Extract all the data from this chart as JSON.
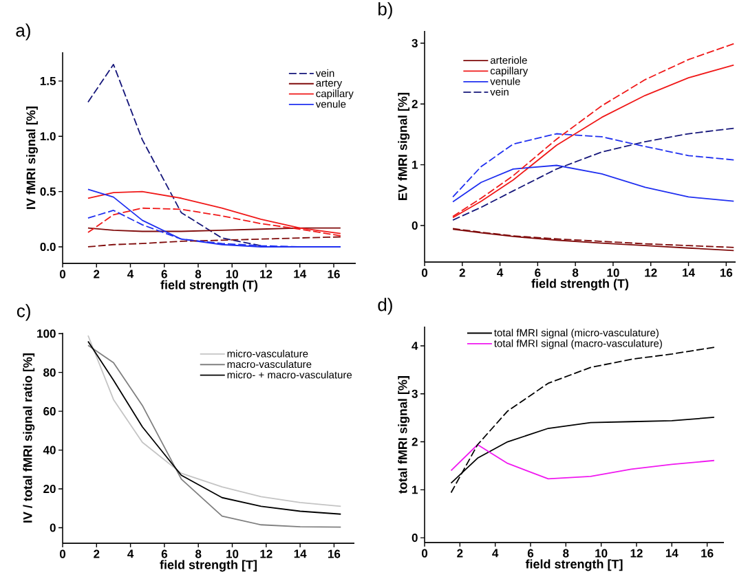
{
  "chart_data": [
    {
      "type": "line",
      "title": "a)",
      "xlabel": "field strength (T)",
      "ylabel": "IV fMRI signal [%]",
      "x": [
        1.5,
        3,
        4.7,
        7,
        9.4,
        11.7,
        14,
        16.4
      ],
      "xlim": [
        0,
        17.3
      ],
      "ylim": [
        -0.15,
        1.76
      ],
      "xticks": [
        0,
        2,
        4,
        6,
        8,
        10,
        12,
        14,
        16
      ],
      "yticks": [
        {
          "value": 0,
          "label": "0.0"
        },
        {
          "value": 0.5,
          "label": "0.5"
        },
        {
          "value": 1,
          "label": "1.0"
        },
        {
          "value": 1.5,
          "label": "1.5"
        }
      ],
      "legend": "top right",
      "series": [
        {
          "name": "vein",
          "color": "#15167a",
          "line_style": "dashed",
          "values": [
            1.31,
            1.65,
            0.97,
            0.31,
            0.08,
            0.01,
            null,
            null
          ]
        },
        {
          "name": "artery",
          "color": "#7f0a0a",
          "line_style": "solid",
          "values": [
            0.17,
            0.15,
            0.14,
            0.14,
            0.15,
            0.16,
            0.17,
            0.17
          ]
        },
        {
          "name": "capillary",
          "color": "#f01818",
          "line_style": "solid",
          "values": [
            0.44,
            0.49,
            0.5,
            0.44,
            0.35,
            0.25,
            0.17,
            0.12
          ]
        },
        {
          "name": "venule",
          "color": "#1f2ff0",
          "line_style": "solid",
          "values": [
            0.52,
            0.45,
            0.24,
            0.07,
            0.02,
            0.0,
            0.0,
            0.0
          ]
        },
        {
          "color": "#7f0a0a",
          "line_style": "dashed",
          "values": [
            0.0,
            0.02,
            0.03,
            0.05,
            0.06,
            0.07,
            0.08,
            0.09
          ]
        },
        {
          "color": "#f01818",
          "line_style": "dashed",
          "values": [
            0.13,
            0.29,
            0.35,
            0.34,
            0.28,
            0.21,
            0.16,
            0.1
          ]
        },
        {
          "color": "#1f2ff0",
          "line_style": "dashed",
          "values": [
            0.26,
            0.33,
            0.2,
            0.07,
            0.03,
            0.01,
            0.0,
            0.0
          ]
        }
      ]
    },
    {
      "type": "line",
      "title": "b)",
      "xlabel": "field strength (T)",
      "ylabel": "EV fMRI signal [%]",
      "x": [
        1.5,
        3,
        4.7,
        7,
        9.4,
        11.7,
        14,
        16.4
      ],
      "xlim": [
        0,
        16.5
      ],
      "ylim": [
        -0.6,
        3.2
      ],
      "xticks": [
        0,
        2,
        4,
        6,
        8,
        10,
        12,
        14,
        16
      ],
      "yticks": [
        0,
        1,
        2,
        3
      ],
      "legend": "top left",
      "series": [
        {
          "name": "arteriole",
          "color": "#7f0a0a",
          "line_style": "solid",
          "values": [
            -0.06,
            -0.12,
            -0.18,
            -0.24,
            -0.29,
            -0.33,
            -0.37,
            -0.41
          ]
        },
        {
          "name": "capillary",
          "color": "#f01818",
          "line_style": "solid",
          "values": [
            0.13,
            0.4,
            0.75,
            1.32,
            1.78,
            2.14,
            2.43,
            2.64
          ]
        },
        {
          "name": "venule",
          "color": "#1f2ff0",
          "line_style": "solid",
          "values": [
            0.39,
            0.71,
            0.93,
            0.99,
            0.85,
            0.63,
            0.47,
            0.4
          ]
        },
        {
          "name": "vein",
          "color": "#15167a",
          "line_style": "dashed",
          "values": [
            0.09,
            0.3,
            0.57,
            0.93,
            1.21,
            1.38,
            1.51,
            1.6
          ]
        },
        {
          "color": "#7f0a0a",
          "line_style": "dashed",
          "values": [
            -0.05,
            -0.11,
            -0.17,
            -0.22,
            -0.26,
            -0.3,
            -0.33,
            -0.36
          ]
        },
        {
          "color": "#f01818",
          "line_style": "dashed",
          "values": [
            0.15,
            0.45,
            0.82,
            1.42,
            1.97,
            2.4,
            2.73,
            2.99
          ]
        },
        {
          "color": "#1f2ff0",
          "line_style": "dashed",
          "values": [
            0.47,
            0.97,
            1.34,
            1.51,
            1.46,
            1.3,
            1.15,
            1.08
          ]
        }
      ]
    },
    {
      "type": "line",
      "title": "c)",
      "xlabel": "field strength [T]",
      "ylabel": "IV / total fMRI signal ratio [%]",
      "x": [
        1.5,
        3,
        4.7,
        7,
        9.4,
        11.7,
        14,
        16.4
      ],
      "xlim": [
        0,
        17.2
      ],
      "ylim": [
        -8,
        100.4
      ],
      "xticks": [
        0,
        2,
        4,
        6,
        8,
        10,
        12,
        14,
        16
      ],
      "yticks": [
        0,
        20,
        40,
        60,
        80,
        100
      ],
      "legend": "top right",
      "series": [
        {
          "name": "micro-vasculature",
          "color": "#c4c4c4",
          "line_style": "solid",
          "values": [
            99,
            66,
            44,
            28,
            21,
            16,
            13,
            11
          ]
        },
        {
          "name": "macro-vasculature",
          "color": "#7f7f7f",
          "line_style": "solid",
          "values": [
            94,
            85,
            63,
            25,
            6,
            1.5,
            0.5,
            0.3
          ]
        },
        {
          "name": "micro- + macro-vasculature",
          "color": "#000000",
          "line_style": "solid",
          "values": [
            96,
            76,
            52,
            27,
            15.5,
            11,
            8.5,
            7
          ]
        }
      ]
    },
    {
      "type": "line",
      "title": "d)",
      "xlabel": "field strength [T]",
      "ylabel": "total fMRI signal [%]",
      "x": [
        1.5,
        3,
        4.7,
        7,
        9.4,
        11.7,
        14,
        16.4
      ],
      "xlim": [
        0,
        16.95
      ],
      "ylim": [
        -0.1,
        4.4
      ],
      "xticks": [
        0,
        2,
        4,
        6,
        8,
        10,
        12,
        14,
        16
      ],
      "yticks": [
        0,
        1,
        2,
        3,
        4
      ],
      "legend": "top",
      "series": [
        {
          "name": "total fMRI signal (micro-vasculature)",
          "color": "#000000",
          "line_style": "solid",
          "values": [
            1.14,
            1.66,
            2.0,
            2.28,
            2.4,
            2.42,
            2.44,
            2.51
          ]
        },
        {
          "name": "total fMRI signal (macro-vasculature)",
          "color": "#f018f0",
          "line_style": "solid",
          "values": [
            1.4,
            1.94,
            1.55,
            1.23,
            1.28,
            1.43,
            1.53,
            1.61
          ]
        },
        {
          "color": "#000000",
          "line_style": "dashed",
          "values": [
            0.94,
            1.94,
            2.64,
            3.22,
            3.55,
            3.72,
            3.83,
            3.97
          ]
        }
      ]
    }
  ]
}
